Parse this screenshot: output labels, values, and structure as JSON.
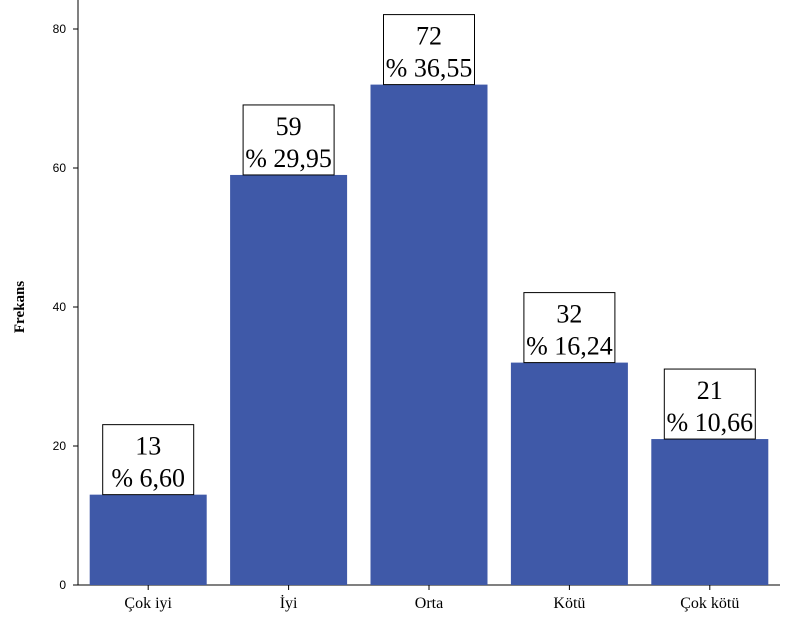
{
  "chart_data": {
    "type": "bar",
    "ylabel": "Frekans",
    "xlabel": "",
    "ylim": [
      0,
      80
    ],
    "yticks": [
      0,
      20,
      40,
      60,
      80
    ],
    "categories": [
      "Çok iyi",
      "İyi",
      "Orta",
      "Kötü",
      "Çok kötü"
    ],
    "values": [
      13,
      59,
      72,
      32,
      21
    ],
    "percent_labels": [
      "% 6,60",
      "% 29,95",
      "% 36,55",
      "% 16,24",
      "% 10,66"
    ],
    "bar_color": "#3f59a8",
    "grid": false,
    "legend": "none"
  }
}
